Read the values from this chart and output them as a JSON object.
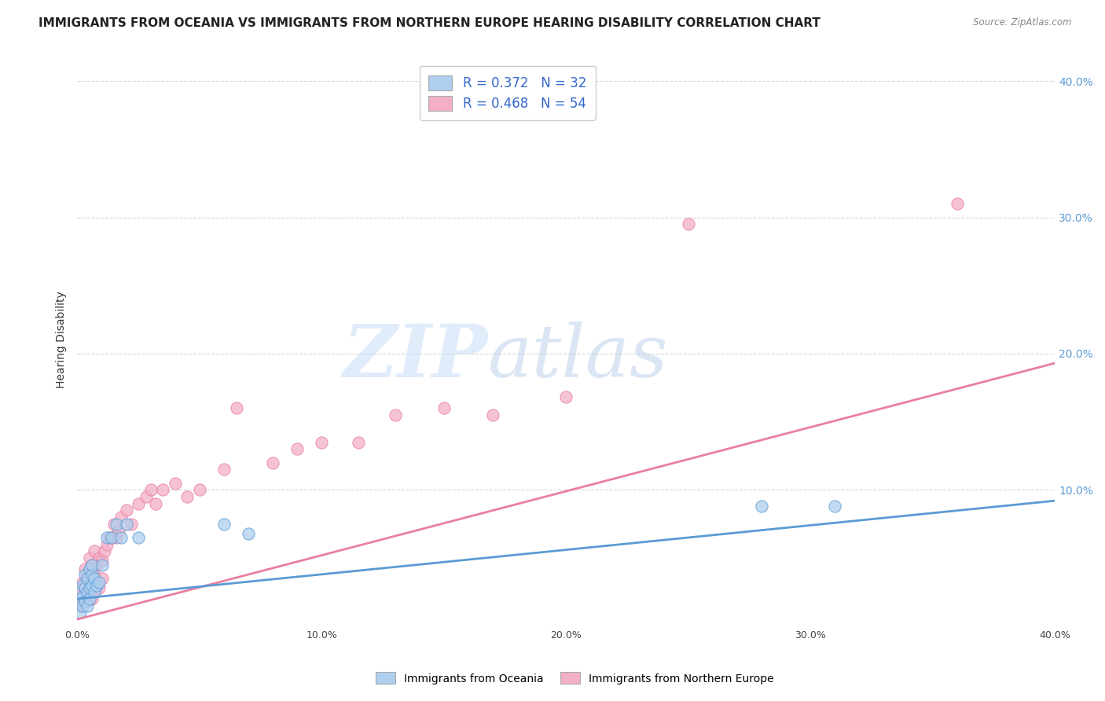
{
  "title": "IMMIGRANTS FROM OCEANIA VS IMMIGRANTS FROM NORTHERN EUROPE HEARING DISABILITY CORRELATION CHART",
  "source_text": "Source: ZipAtlas.com",
  "ylabel": "Hearing Disability",
  "xlim": [
    0.0,
    0.4
  ],
  "ylim": [
    0.0,
    0.42
  ],
  "x_tick_labels": [
    "0.0%",
    "10.0%",
    "20.0%",
    "30.0%",
    "40.0%"
  ],
  "x_tick_values": [
    0.0,
    0.1,
    0.2,
    0.3,
    0.4
  ],
  "y_tick_labels": [
    "10.0%",
    "20.0%",
    "30.0%",
    "40.0%"
  ],
  "y_tick_values": [
    0.1,
    0.2,
    0.3,
    0.4
  ],
  "legend1_label": "R = 0.372   N = 32",
  "legend2_label": "R = 0.468   N = 54",
  "series1_color": "#aecfef",
  "series2_color": "#f4afc8",
  "line1_color": "#5b9bd5",
  "line2_color": "#e97fa0",
  "watermark_zip": "ZIP",
  "watermark_atlas": "atlas",
  "background_color": "#ffffff",
  "grid_color": "#cccccc",
  "title_fontsize": 11,
  "tick_fontsize": 9,
  "legend_text_color": "#3366cc",
  "oceania_x": [
    0.001,
    0.001,
    0.002,
    0.002,
    0.002,
    0.003,
    0.003,
    0.003,
    0.004,
    0.004,
    0.004,
    0.005,
    0.005,
    0.005,
    0.006,
    0.006,
    0.006,
    0.007,
    0.007,
    0.008,
    0.009,
    0.01,
    0.012,
    0.014,
    0.016,
    0.018,
    0.02,
    0.025,
    0.06,
    0.07,
    0.28,
    0.31
  ],
  "oceania_y": [
    0.01,
    0.02,
    0.015,
    0.022,
    0.03,
    0.018,
    0.028,
    0.038,
    0.015,
    0.025,
    0.035,
    0.02,
    0.028,
    0.042,
    0.03,
    0.038,
    0.045,
    0.025,
    0.035,
    0.03,
    0.032,
    0.045,
    0.065,
    0.065,
    0.075,
    0.065,
    0.075,
    0.065,
    0.075,
    0.068,
    0.088,
    0.088
  ],
  "northern_europe_x": [
    0.001,
    0.001,
    0.002,
    0.002,
    0.003,
    0.003,
    0.003,
    0.004,
    0.004,
    0.005,
    0.005,
    0.005,
    0.006,
    0.006,
    0.006,
    0.007,
    0.007,
    0.007,
    0.008,
    0.008,
    0.009,
    0.009,
    0.01,
    0.01,
    0.011,
    0.012,
    0.013,
    0.014,
    0.015,
    0.016,
    0.017,
    0.018,
    0.02,
    0.022,
    0.025,
    0.028,
    0.03,
    0.032,
    0.035,
    0.04,
    0.045,
    0.05,
    0.06,
    0.065,
    0.08,
    0.09,
    0.1,
    0.115,
    0.13,
    0.15,
    0.17,
    0.2,
    0.25,
    0.36
  ],
  "northern_europe_y": [
    0.015,
    0.025,
    0.018,
    0.032,
    0.022,
    0.03,
    0.042,
    0.018,
    0.038,
    0.025,
    0.035,
    0.05,
    0.02,
    0.03,
    0.045,
    0.025,
    0.038,
    0.055,
    0.03,
    0.045,
    0.028,
    0.05,
    0.035,
    0.048,
    0.055,
    0.06,
    0.065,
    0.065,
    0.075,
    0.065,
    0.07,
    0.08,
    0.085,
    0.075,
    0.09,
    0.095,
    0.1,
    0.09,
    0.1,
    0.105,
    0.095,
    0.1,
    0.115,
    0.16,
    0.12,
    0.13,
    0.135,
    0.135,
    0.155,
    0.16,
    0.155,
    0.168,
    0.295,
    0.31
  ],
  "line1_x_start": 0.0,
  "line1_x_end": 0.4,
  "line1_y_start": 0.02,
  "line1_y_end": 0.092,
  "line2_x_start": 0.0,
  "line2_x_end": 0.4,
  "line2_y_start": 0.005,
  "line2_y_end": 0.193
}
